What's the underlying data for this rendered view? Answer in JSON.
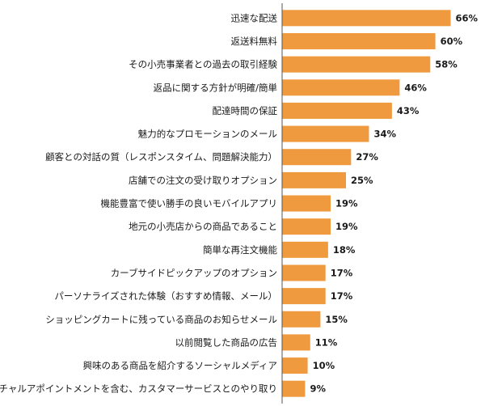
{
  "chart_data": {
    "type": "bar",
    "orientation": "horizontal",
    "title": "",
    "xlabel": "",
    "ylabel": "",
    "xlim": [
      0,
      70
    ],
    "value_suffix": "%",
    "bar_color": "#ef9a3f",
    "axis_color": "#555555",
    "categories": [
      "迅速な配送",
      "返送料無料",
      "その小売事業者との過去の取引経験",
      "返品に関する方針が明確/簡単",
      "配達時間の保証",
      "魅力的なプロモーションのメール",
      "顧客との対話の質（レスポンスタイム、問題解決能力）",
      "店舗での注文の受け取りオプション",
      "機能豊富で使い勝手の良いモバイルアプリ",
      "地元の小売店からの商品であること",
      "簡単な再注文機能",
      "カーブサイドピックアップのオプション",
      "パーソナライズされた体験（おすすめ情報、メール）",
      "ショッピングカートに残っている商品のお知らせメール",
      "以前閲覧した商品の広告",
      "興味のある商品を紹介するソーシャルメディア",
      "バーチャルアポイントメントを含む、カスタマーサービスとのやり取り"
    ],
    "values": [
      66,
      60,
      58,
      46,
      43,
      34,
      27,
      25,
      19,
      19,
      18,
      17,
      17,
      15,
      11,
      10,
      9
    ]
  }
}
